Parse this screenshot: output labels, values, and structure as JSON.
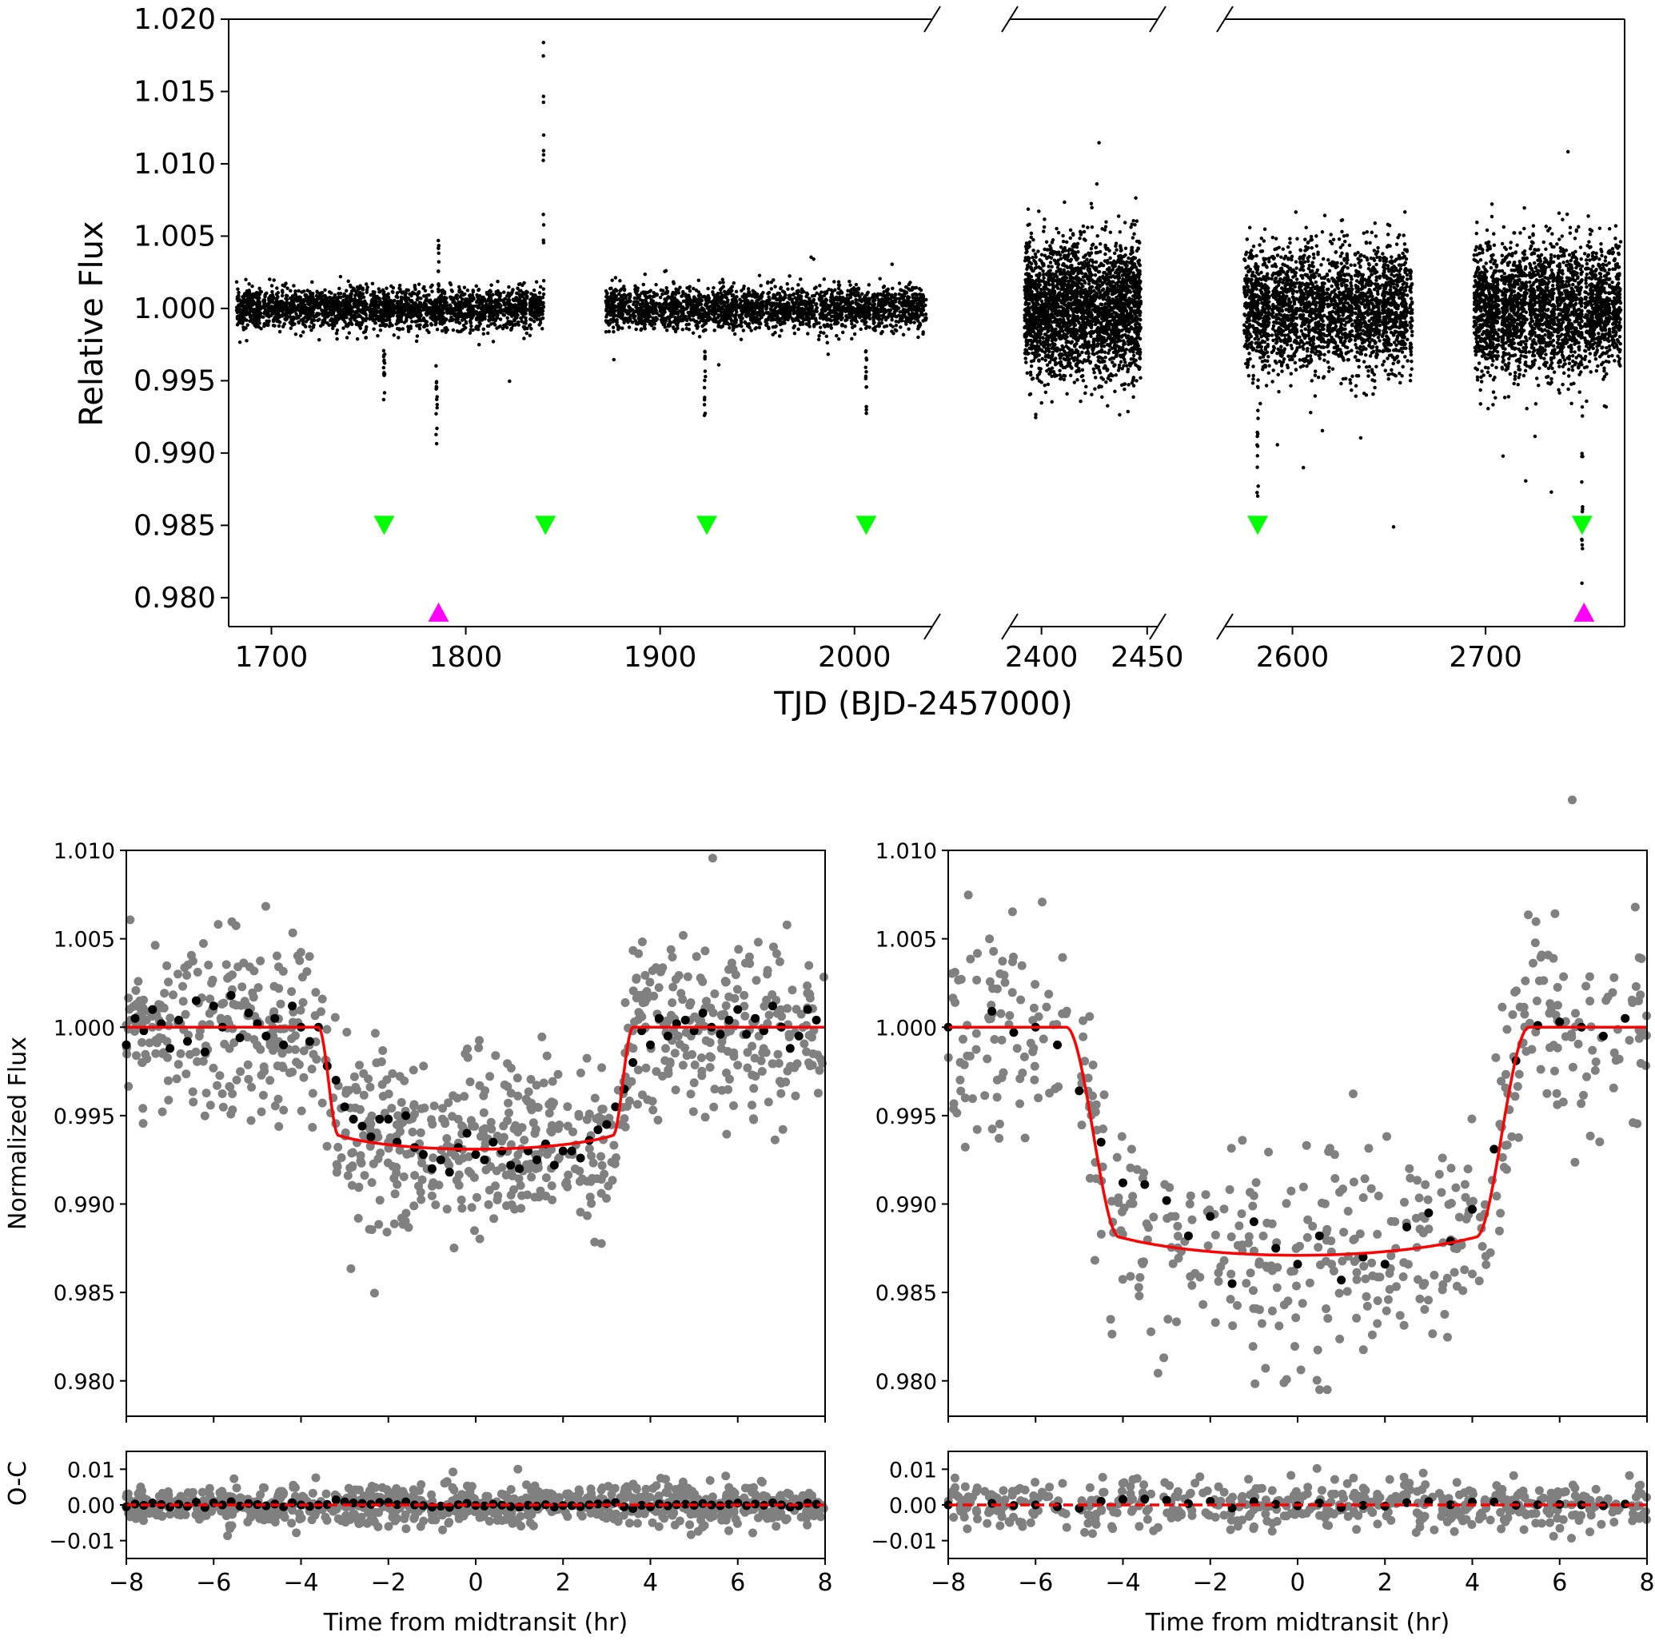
{
  "colors": {
    "points": "#000000",
    "gray_points": "#808080",
    "model": "#ff0000",
    "green_marker": "#00ff00",
    "magenta_marker": "#ff00ff"
  },
  "chart_data": [
    {
      "id": "top",
      "type": "scatter",
      "title": "",
      "xlabel": "TJD (BJD-2457000)",
      "ylabel": "Relative Flux",
      "ylim": [
        0.978,
        1.02
      ],
      "yticks": [
        0.98,
        0.985,
        0.99,
        0.995,
        1.0,
        1.005,
        1.01,
        1.015,
        1.02
      ],
      "ytick_labels": [
        "0.980",
        "0.985",
        "0.990",
        "0.995",
        "1.000",
        "1.005",
        "1.010",
        "1.015",
        "1.020"
      ],
      "broken_axis_segments": [
        {
          "xlim": [
            1678,
            2040
          ],
          "xticks": [
            1700,
            1800,
            1900,
            2000
          ],
          "xtick_labels": [
            "1700",
            "1800",
            "1900",
            "2000"
          ]
        },
        {
          "xlim": [
            2385,
            2455
          ],
          "xticks": [
            2400,
            2450
          ],
          "xtick_labels": [
            "2400",
            "2450"
          ]
        },
        {
          "xlim": [
            2565,
            2772
          ],
          "xticks": [
            2600,
            2700
          ],
          "xtick_labels": [
            "2600",
            "2700"
          ]
        }
      ],
      "data_blocks": [
        {
          "x_range": [
            1682,
            1840
          ],
          "flux_center": 1.0,
          "flux_halfwidth": 0.0016
        },
        {
          "x_range": [
            1872,
            2037
          ],
          "flux_center": 1.0,
          "flux_halfwidth": 0.0017
        },
        {
          "x_range": [
            2392,
            2447
          ],
          "flux_center": 1.0,
          "flux_halfwidth": 0.0055
        },
        {
          "x_range": [
            2575,
            2662
          ],
          "flux_center": 1.0,
          "flux_halfwidth": 0.0048
        },
        {
          "x_range": [
            2694,
            2770
          ],
          "flux_center": 1.0,
          "flux_halfwidth": 0.0052
        }
      ],
      "transit_dips": [
        {
          "x": 1758,
          "depth": 0.0065
        },
        {
          "x": 1785,
          "depth": 0.011
        },
        {
          "x": 1923,
          "depth": 0.0075
        },
        {
          "x": 2006,
          "depth": 0.0075
        },
        {
          "x": 2582,
          "depth": 0.014
        },
        {
          "x": 2750,
          "depth": 0.019
        }
      ],
      "flare_events": [
        {
          "x": 1786,
          "peak": 1.0055
        },
        {
          "x": 1840,
          "peak": 1.02
        }
      ],
      "green_markers": {
        "y": 0.985,
        "x": [
          1758,
          1841,
          1924,
          2006,
          2582,
          2750
        ]
      },
      "magenta_markers": {
        "y": 0.979,
        "x": [
          1786,
          2751
        ]
      }
    },
    {
      "id": "bottom-left",
      "type": "scatter",
      "title": "",
      "xlabel": "Time from midtransit (hr)",
      "ylabel": "Normalized Flux",
      "xlim": [
        -8,
        8
      ],
      "ylim": [
        0.978,
        1.01
      ],
      "xticks": [
        -8,
        -6,
        -4,
        -2,
        0,
        2,
        4,
        6,
        8
      ],
      "xtick_labels": [
        "−8",
        "−6",
        "−4",
        "−2",
        "0",
        "2",
        "4",
        "6",
        "8"
      ],
      "yticks": [
        0.98,
        0.985,
        0.99,
        0.995,
        1.0,
        1.005,
        1.01
      ],
      "ytick_labels": [
        "0.980",
        "0.985",
        "0.990",
        "0.995",
        "1.000",
        "1.005",
        "1.010"
      ],
      "model": {
        "depth": 0.0069,
        "half_duration_hr": 3.6,
        "ingress_hr": 0.45,
        "baseline": 1.0
      },
      "scatter_noise": 0.0025,
      "raw_points_count": 900,
      "binned_x": [
        -8.0,
        -7.8,
        -7.6,
        -7.4,
        -7.2,
        -7.0,
        -6.8,
        -6.6,
        -6.4,
        -6.2,
        -6.0,
        -5.8,
        -5.6,
        -5.4,
        -5.2,
        -5.0,
        -4.8,
        -4.6,
        -4.4,
        -4.2,
        -4.0,
        -3.8,
        -3.6,
        -3.4,
        -3.2,
        -3.0,
        -2.8,
        -2.6,
        -2.4,
        -2.2,
        -2.0,
        -1.8,
        -1.6,
        -1.4,
        -1.2,
        -1.0,
        -0.8,
        -0.6,
        -0.4,
        -0.2,
        0.0,
        0.2,
        0.4,
        0.6,
        0.8,
        1.0,
        1.2,
        1.4,
        1.6,
        1.8,
        2.0,
        2.2,
        2.4,
        2.6,
        2.8,
        3.0,
        3.2,
        3.4,
        3.6,
        3.8,
        4.0,
        4.2,
        4.4,
        4.6,
        4.8,
        5.0,
        5.2,
        5.4,
        5.6,
        5.8,
        6.0,
        6.2,
        6.4,
        6.6,
        6.8,
        7.0,
        7.2,
        7.4,
        7.6,
        7.8
      ],
      "binned_flux": [
        0.999,
        1.0005,
        0.9998,
        1.001,
        1.0002,
        0.9988,
        1.0004,
        0.9992,
        1.0015,
        0.9986,
        1.0012,
        1.0,
        1.0018,
        0.9994,
        1.0008,
        1.0002,
        0.9995,
        1.0005,
        0.999,
        1.0012,
        1.0,
        0.9992,
        1.0,
        0.9978,
        0.997,
        0.9955,
        0.9948,
        0.9944,
        0.9938,
        0.9948,
        0.9948,
        0.9935,
        0.995,
        0.9932,
        0.9928,
        0.992,
        0.9925,
        0.9918,
        0.9932,
        0.994,
        0.9928,
        0.9925,
        0.9935,
        0.993,
        0.9922,
        0.992,
        0.993,
        0.9925,
        0.9934,
        0.9922,
        0.993,
        0.993,
        0.9926,
        0.9936,
        0.9942,
        0.9945,
        0.9955,
        0.9965,
        0.998,
        0.9998,
        0.999,
        1.0005,
        0.9995,
        1.0002,
        1.0004,
        0.9998,
        1.0008,
        1.0,
        0.9996,
        1.0004,
        1.001,
        0.9996,
        1.0005,
        0.9998,
        1.0012,
        1.0,
        0.9988,
        0.9995,
        1.001,
        1.0004
      ],
      "oc": {
        "ylabel": "O-C",
        "ylim": [
          -0.015,
          0.015
        ],
        "yticks": [
          -0.01,
          0.0,
          0.01
        ],
        "ytick_labels": [
          "−0.01",
          "0.00",
          "0.01"
        ],
        "scatter_noise": 0.0028
      }
    },
    {
      "id": "bottom-right",
      "type": "scatter",
      "title": "",
      "xlabel": "Time from midtransit (hr)",
      "ylabel": "",
      "xlim": [
        -8,
        8
      ],
      "ylim": [
        0.978,
        1.01
      ],
      "xticks": [
        -8,
        -6,
        -4,
        -2,
        0,
        2,
        4,
        6,
        8
      ],
      "xtick_labels": [
        "−8",
        "−6",
        "−4",
        "−2",
        "0",
        "2",
        "4",
        "6",
        "8"
      ],
      "yticks": [
        0.98,
        0.985,
        0.99,
        0.995,
        1.0,
        1.005,
        1.01
      ],
      "ytick_labels": [
        "0.980",
        "0.985",
        "0.990",
        "0.995",
        "1.000",
        "1.005",
        "1.010"
      ],
      "model": {
        "depth": 0.0129,
        "half_duration_hr": 5.3,
        "ingress_hr": 1.2,
        "baseline": 1.0
      },
      "scatter_noise": 0.003,
      "raw_points_count": 520,
      "binned_x": [
        -8.0,
        -7.0,
        -6.5,
        -6.0,
        -5.5,
        -5.0,
        -4.5,
        -4.0,
        -3.5,
        -3.0,
        -2.5,
        -2.0,
        -1.5,
        -1.0,
        -0.5,
        0.0,
        0.5,
        1.0,
        1.5,
        2.0,
        2.5,
        3.0,
        3.5,
        4.0,
        4.5,
        5.0,
        5.5,
        6.0,
        6.5,
        7.0,
        7.5
      ],
      "binned_flux": [
        1.0,
        1.0009,
        0.9997,
        1.0,
        0.999,
        0.9964,
        0.9935,
        0.9912,
        0.9911,
        0.9902,
        0.9882,
        0.9893,
        0.9855,
        0.989,
        0.9875,
        0.9866,
        0.9882,
        0.9857,
        0.987,
        0.9866,
        0.9887,
        0.9895,
        0.9879,
        0.9897,
        0.9931,
        0.9981,
        1.0001,
        1.0003,
        1.0,
        0.9995,
        1.0005
      ],
      "oc": {
        "ylabel": "",
        "ylim": [
          -0.015,
          0.015
        ],
        "yticks": [
          -0.01,
          0.0,
          0.01
        ],
        "ytick_labels": [
          "−0.01",
          "0.00",
          "0.01"
        ],
        "scatter_noise": 0.0032
      }
    }
  ]
}
